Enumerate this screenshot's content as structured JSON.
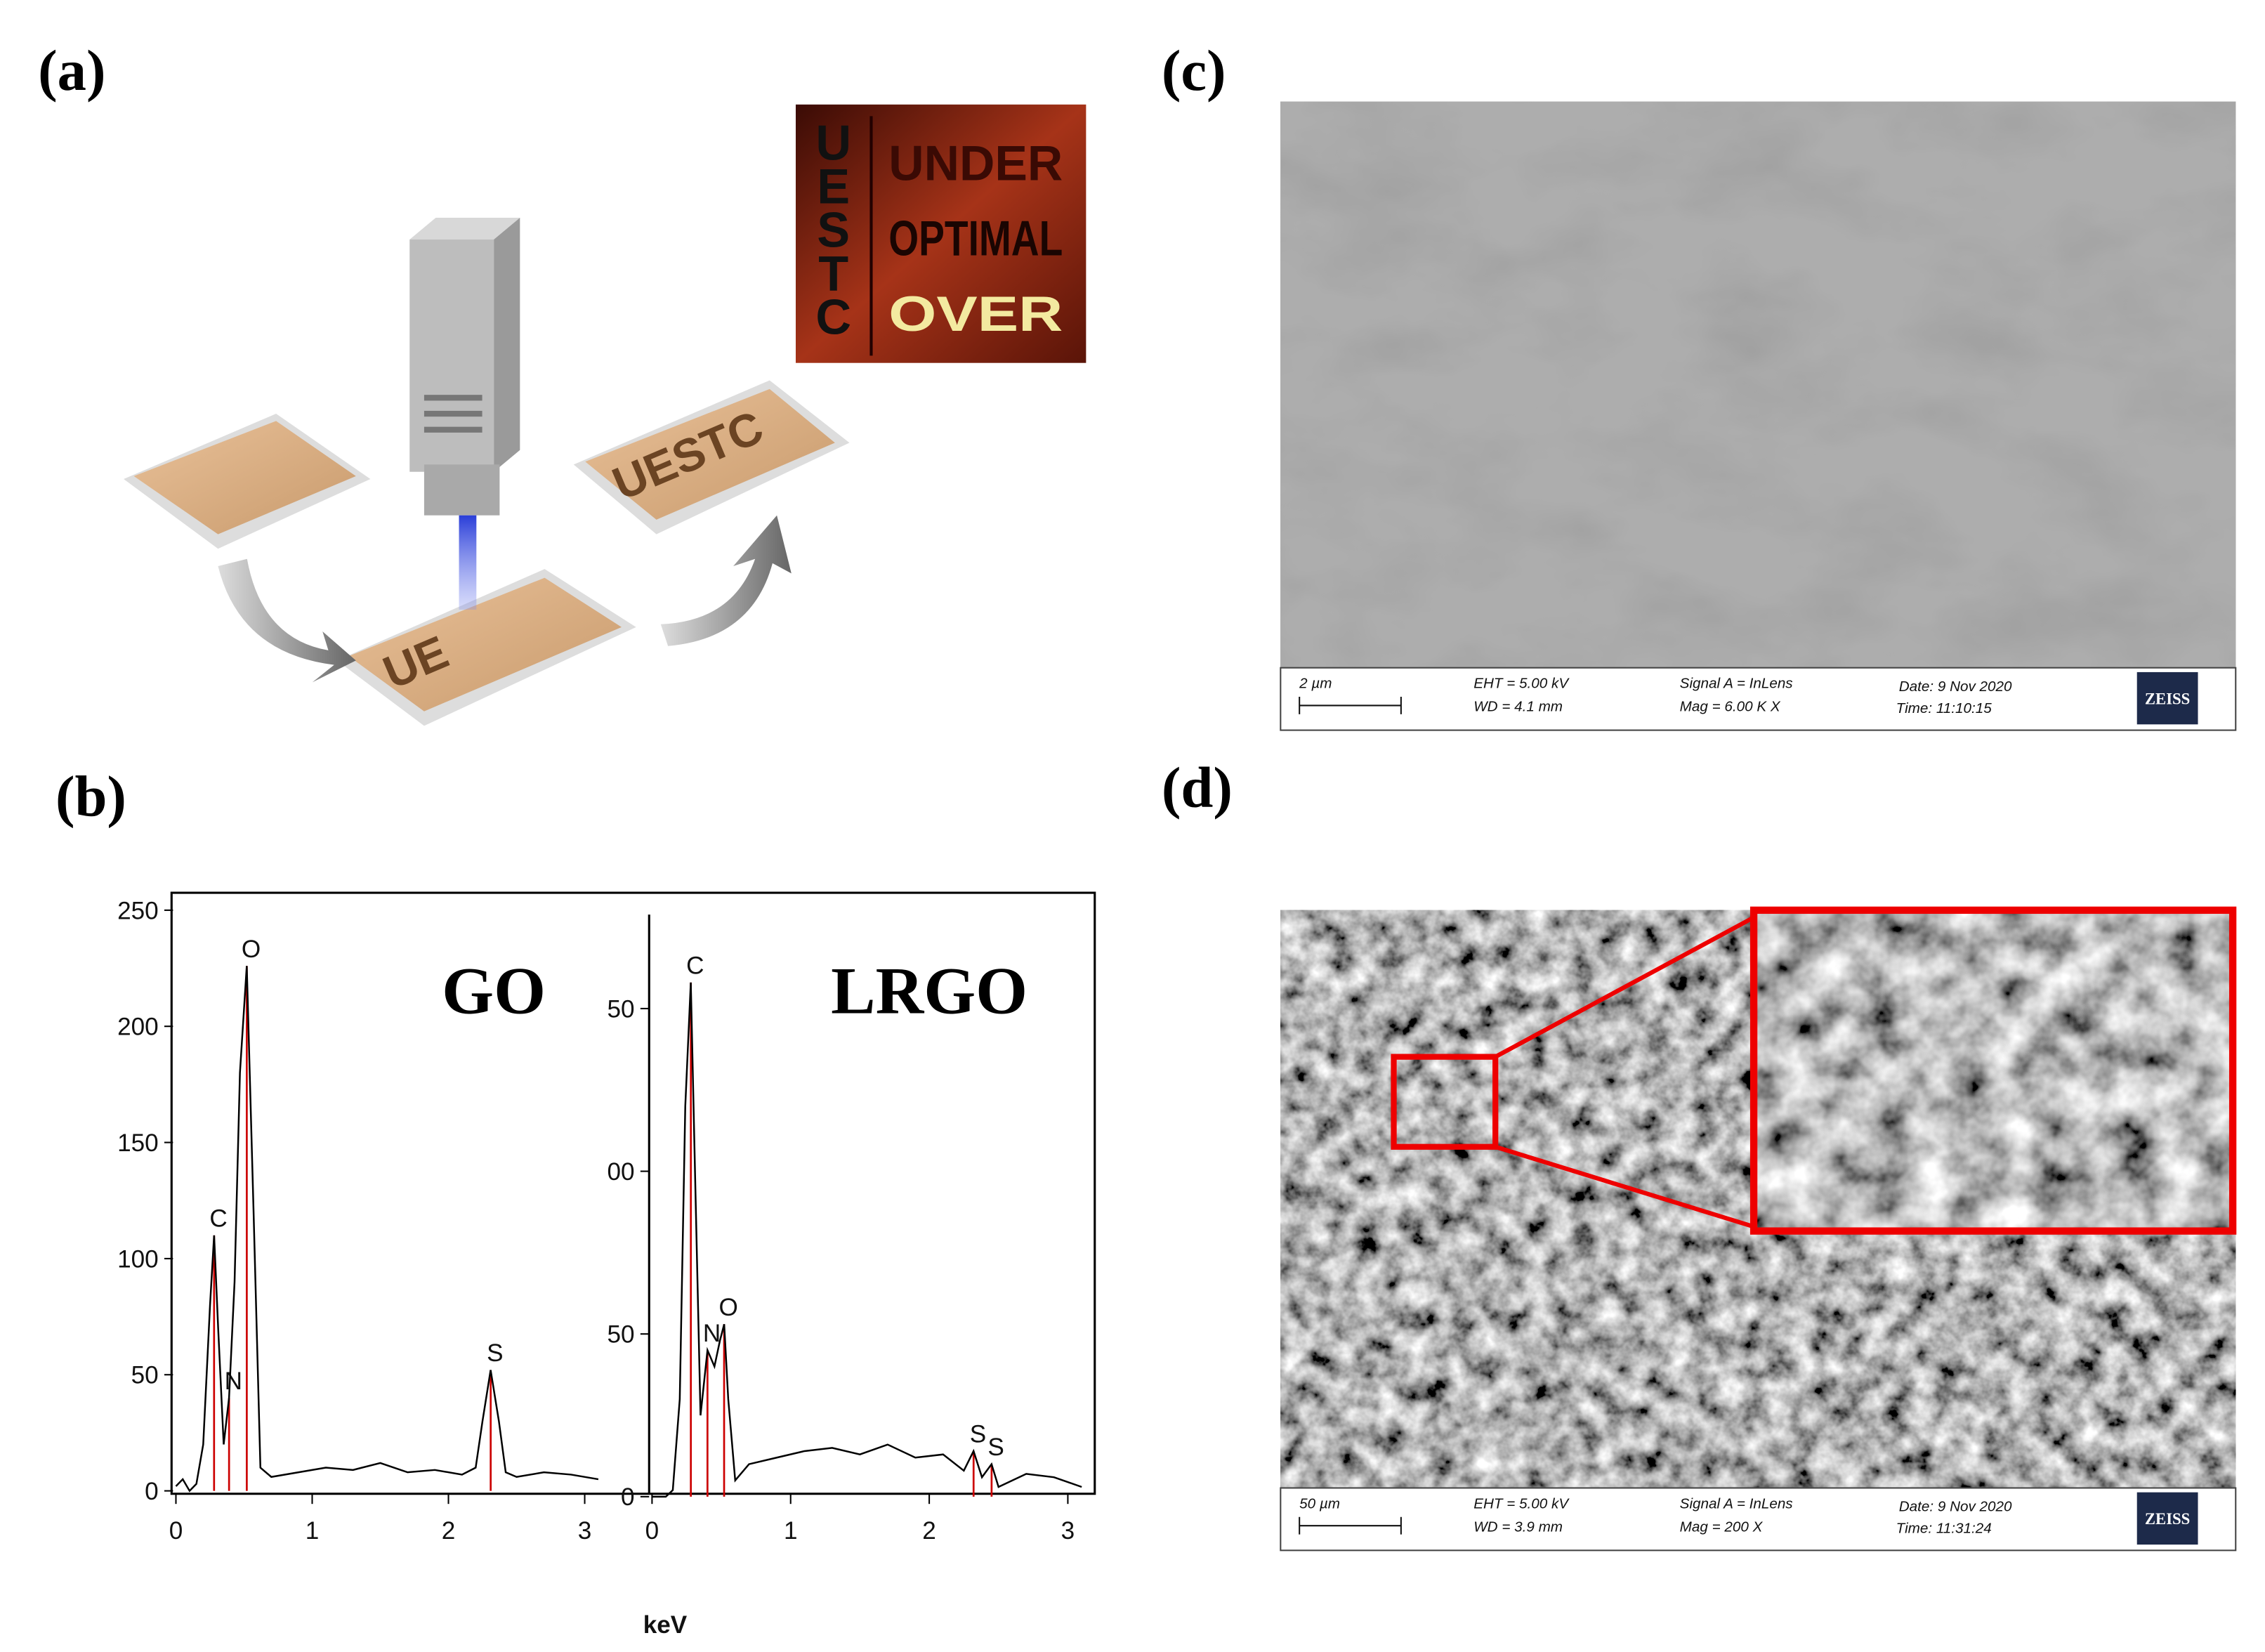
{
  "panels": {
    "a": "(a)",
    "b": "(b)",
    "c": "(c)",
    "d": "(d)"
  },
  "photo": {
    "vertical": [
      "U",
      "E",
      "S",
      "T",
      "C"
    ],
    "rows": [
      "UNDER",
      "OPTIMAL",
      "OVER"
    ]
  },
  "schematic": {
    "middle": "UE",
    "right": "UESTC"
  },
  "chart_data": [
    {
      "type": "line",
      "title": "GO",
      "color": "#000000",
      "peak_color": "#cc0000",
      "x": [
        0,
        0.05,
        0.1,
        0.15,
        0.2,
        0.25,
        0.28,
        0.31,
        0.35,
        0.39,
        0.43,
        0.47,
        0.52,
        0.57,
        0.62,
        0.7,
        0.9,
        1.1,
        1.3,
        1.5,
        1.7,
        1.9,
        2.1,
        2.2,
        2.25,
        2.31,
        2.37,
        2.42,
        2.5,
        2.7,
        2.9,
        3.1
      ],
      "values": [
        2,
        5,
        0,
        3,
        20,
        80,
        110,
        70,
        20,
        40,
        90,
        180,
        226,
        120,
        10,
        6,
        8,
        10,
        9,
        12,
        8,
        9,
        7,
        10,
        30,
        52,
        30,
        8,
        6,
        8,
        7,
        5
      ],
      "peaks": [
        {
          "label": "C",
          "x": 0.28
        },
        {
          "label": "N",
          "x": 0.39
        },
        {
          "label": "O",
          "x": 0.52
        },
        {
          "label": "S",
          "x": 2.31
        }
      ],
      "xlim": [
        0,
        3.1
      ],
      "xticks": [
        0,
        1,
        2,
        3
      ],
      "ylim": [
        0,
        255
      ],
      "yticks": [
        0,
        50,
        100,
        150,
        200,
        250
      ]
    },
    {
      "type": "line",
      "title": "LRGO",
      "color": "#000000",
      "peak_color": "#cc0000",
      "x": [
        0,
        0.1,
        0.15,
        0.2,
        0.24,
        0.28,
        0.31,
        0.35,
        0.4,
        0.45,
        0.49,
        0.52,
        0.55,
        0.6,
        0.7,
        0.9,
        1.1,
        1.3,
        1.5,
        1.7,
        1.9,
        2.1,
        2.25,
        2.32,
        2.38,
        2.45,
        2.5,
        2.7,
        2.9,
        3.1
      ],
      "values": [
        0,
        0,
        2,
        30,
        120,
        158,
        100,
        25,
        45,
        40,
        48,
        53,
        30,
        5,
        10,
        12,
        14,
        15,
        13,
        16,
        12,
        13,
        8,
        14,
        6,
        10,
        3,
        7,
        6,
        3
      ],
      "peaks": [
        {
          "label": "C",
          "x": 0.28
        },
        {
          "label": "N",
          "x": 0.4
        },
        {
          "label": "O",
          "x": 0.52
        },
        {
          "label": "S",
          "x": 2.32
        },
        {
          "label": "S",
          "x": 2.45
        }
      ],
      "xlim": [
        0,
        3.1
      ],
      "xticks": [
        0,
        1,
        2,
        3
      ],
      "ylim": [
        0,
        178
      ],
      "yticks": [
        0,
        50,
        {
          "value": 100,
          "label": "00"
        },
        {
          "value": 150,
          "label": "50"
        }
      ]
    }
  ],
  "x_label": "keV",
  "sem_c": {
    "scale": "2 µm",
    "eht": "EHT =  5.00 kV",
    "wd": "WD =  4.1 mm",
    "signal": "Signal A = InLens",
    "mag": "Mag =    6.00 K X",
    "date": "Date: 9 Nov 2020",
    "time": "Time: 11:10:15",
    "brand": "ZEISS"
  },
  "sem_d": {
    "scale": "50 µm",
    "eht": "EHT =  5.00 kV",
    "wd": "WD =  3.9 mm",
    "signal": "Signal A = InLens",
    "mag": "Mag =    200 X",
    "date": "Date: 9 Nov 2020",
    "time": "Time: 11:31:24",
    "brand": "ZEISS"
  }
}
